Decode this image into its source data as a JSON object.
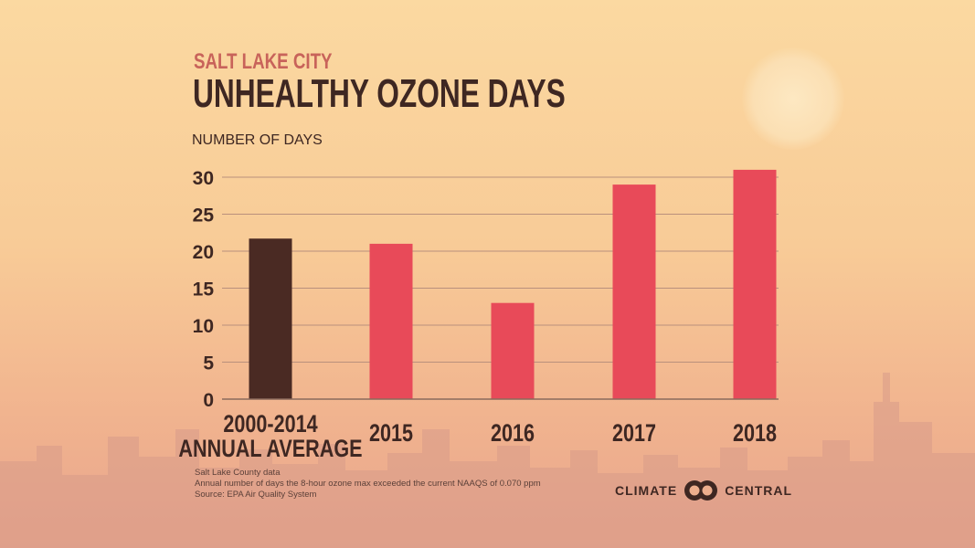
{
  "header": {
    "kicker": "SALT LAKE CITY",
    "title": "UNHEALTHY OZONE DAYS"
  },
  "chart_data": {
    "type": "bar",
    "title": "UNHEALTHY OZONE DAYS",
    "subtitle": "SALT LAKE CITY",
    "ylabel": "NUMBER OF DAYS",
    "xlabel": "",
    "categories": [
      [
        "2000-2014",
        "ANNUAL AVERAGE"
      ],
      [
        "2015"
      ],
      [
        "2016"
      ],
      [
        "2017"
      ],
      [
        "2018"
      ]
    ],
    "values": [
      21.7,
      21,
      13,
      29,
      31
    ],
    "bar_colors": [
      "#4a2a23",
      "#e84a59",
      "#e84a59",
      "#e84a59",
      "#e84a59"
    ],
    "ylim": [
      0,
      30
    ],
    "yticks": [
      0,
      5,
      10,
      15,
      20,
      25,
      30
    ],
    "grid": true
  },
  "footnote": {
    "line1": "Salt Lake County data",
    "line2": "Annual number of days the 8-hour ozone max exceeded the current NAAQS of 0.070 ppm",
    "line3": "Source: EPA Air Quality System"
  },
  "brand": {
    "left": "CLIMATE",
    "right": "CENTRAL",
    "logo_icon": "interlocking-rings-icon"
  },
  "colors": {
    "accent_bar": "#e84a59",
    "average_bar": "#4a2a23",
    "text": "#3e2722",
    "kicker": "#c8635a"
  }
}
